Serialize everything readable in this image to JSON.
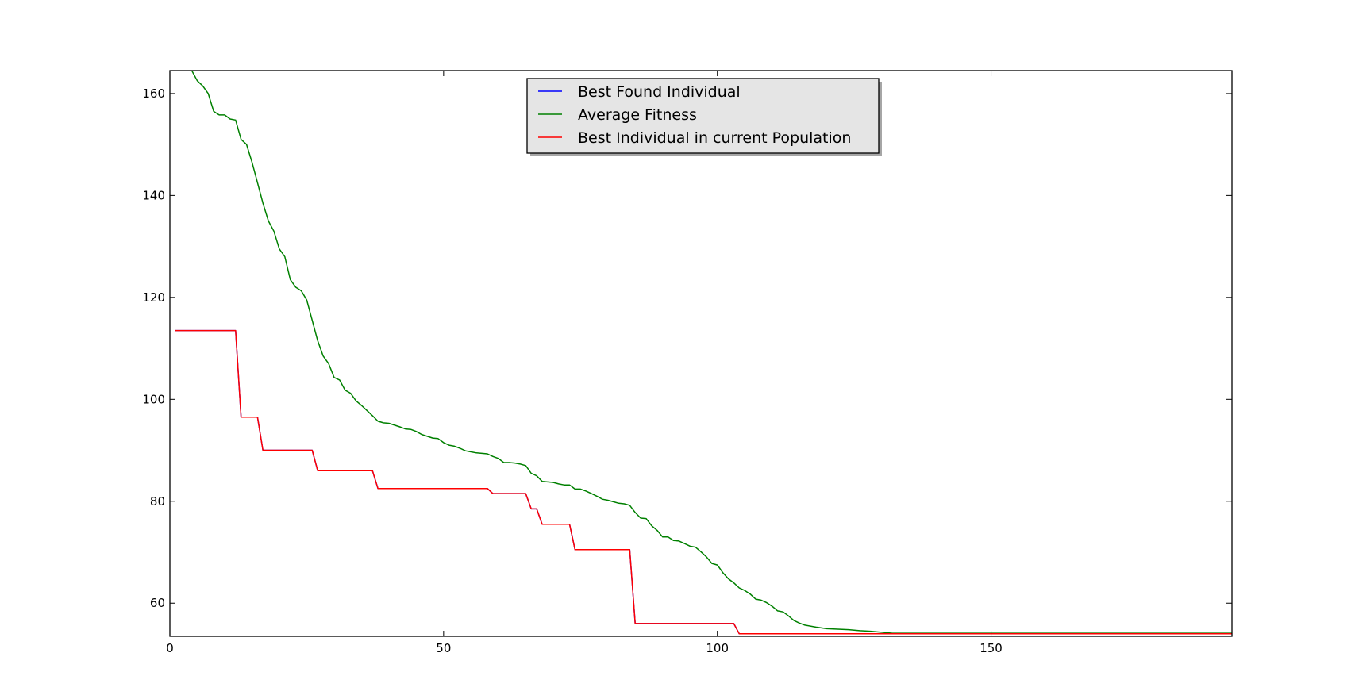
{
  "chart_data": {
    "type": "line",
    "title": "",
    "xlabel": "",
    "ylabel": "",
    "xlim": [
      0,
      194
    ],
    "ylim": [
      53.5,
      164.5
    ],
    "xticks": [
      0,
      50,
      100,
      150
    ],
    "yticks": [
      60,
      80,
      100,
      120,
      140,
      160
    ],
    "grid": false,
    "legend": {
      "placement": "top-center",
      "entries": [
        {
          "label": "Best Found Individual",
          "color": "#0000ff"
        },
        {
          "label": "Average Fitness",
          "color": "#008000"
        },
        {
          "label": "Best Individual in current Population",
          "color": "#ff0000"
        }
      ]
    },
    "series": [
      {
        "name": "Best Found Individual",
        "color": "#0000ff",
        "points": [
          [
            1,
            113.5
          ],
          [
            12,
            113.5
          ],
          [
            13,
            96.5
          ],
          [
            16,
            96.5
          ],
          [
            17,
            90
          ],
          [
            26,
            90
          ],
          [
            27,
            86
          ],
          [
            37,
            86
          ],
          [
            38,
            82.5
          ],
          [
            58,
            82.5
          ],
          [
            59,
            81.5
          ],
          [
            65,
            81.5
          ],
          [
            66,
            78.5
          ],
          [
            67,
            78.5
          ],
          [
            68,
            75.5
          ],
          [
            73,
            75.5
          ],
          [
            74,
            70.5
          ],
          [
            84,
            70.5
          ],
          [
            85,
            56
          ],
          [
            103,
            56
          ],
          [
            104,
            54
          ],
          [
            194,
            54
          ]
        ]
      },
      {
        "name": "Average Fitness",
        "color": "#008000",
        "points": [
          [
            4,
            164.5
          ],
          [
            5,
            162.5
          ],
          [
            6,
            161.5
          ],
          [
            7,
            160
          ],
          [
            8,
            156.5
          ],
          [
            9,
            155.8
          ],
          [
            10,
            155.8
          ],
          [
            11,
            155
          ],
          [
            12,
            154.8
          ],
          [
            13,
            151
          ],
          [
            14,
            150
          ],
          [
            15,
            146.5
          ],
          [
            16,
            142.5
          ],
          [
            17,
            138.5
          ],
          [
            18,
            135
          ],
          [
            19,
            133
          ],
          [
            20,
            129.5
          ],
          [
            21,
            128
          ],
          [
            22,
            123.5
          ],
          [
            23,
            122
          ],
          [
            24,
            121.3
          ],
          [
            25,
            119.5
          ],
          [
            26,
            115.5
          ],
          [
            27,
            111.5
          ],
          [
            28,
            108.5
          ],
          [
            29,
            107
          ],
          [
            30,
            104.3
          ],
          [
            31,
            103.8
          ],
          [
            32,
            101.8
          ],
          [
            33,
            101.2
          ],
          [
            34,
            99.7
          ],
          [
            35,
            98.8
          ],
          [
            36,
            97.8
          ],
          [
            37,
            96.8
          ],
          [
            38,
            95.7
          ],
          [
            39,
            95.4
          ],
          [
            40,
            95.3
          ],
          [
            42,
            94.6
          ],
          [
            43,
            94.2
          ],
          [
            44,
            94.1
          ],
          [
            45,
            93.7
          ],
          [
            46,
            93.1
          ],
          [
            48,
            92.4
          ],
          [
            49,
            92.3
          ],
          [
            50,
            91.5
          ],
          [
            51,
            91
          ],
          [
            52,
            90.8
          ],
          [
            53,
            90.4
          ],
          [
            54,
            89.9
          ],
          [
            55,
            89.7
          ],
          [
            56,
            89.5
          ],
          [
            58,
            89.3
          ],
          [
            59,
            88.8
          ],
          [
            60,
            88.4
          ],
          [
            61,
            87.6
          ],
          [
            62,
            87.6
          ],
          [
            63,
            87.5
          ],
          [
            64,
            87.3
          ],
          [
            65,
            87
          ],
          [
            66,
            85.5
          ],
          [
            67,
            85
          ],
          [
            68,
            83.9
          ],
          [
            69,
            83.8
          ],
          [
            70,
            83.7
          ],
          [
            71,
            83.4
          ],
          [
            72,
            83.2
          ],
          [
            73,
            83.2
          ],
          [
            74,
            82.4
          ],
          [
            75,
            82.4
          ],
          [
            76,
            82
          ],
          [
            77,
            81.5
          ],
          [
            78,
            81
          ],
          [
            79,
            80.4
          ],
          [
            80,
            80.2
          ],
          [
            81,
            79.9
          ],
          [
            82,
            79.6
          ],
          [
            83,
            79.5
          ],
          [
            84,
            79.2
          ],
          [
            85,
            77.8
          ],
          [
            86,
            76.7
          ],
          [
            87,
            76.6
          ],
          [
            88,
            75.2
          ],
          [
            89,
            74.3
          ],
          [
            90,
            73
          ],
          [
            91,
            73
          ],
          [
            92,
            72.3
          ],
          [
            93,
            72.2
          ],
          [
            94,
            71.7
          ],
          [
            95,
            71.2
          ],
          [
            96,
            71
          ],
          [
            97,
            70.1
          ],
          [
            98,
            69.1
          ],
          [
            99,
            67.8
          ],
          [
            100,
            67.5
          ],
          [
            101,
            66
          ],
          [
            102,
            64.8
          ],
          [
            103,
            64
          ],
          [
            104,
            63
          ],
          [
            105,
            62.5
          ],
          [
            106,
            61.8
          ],
          [
            107,
            60.8
          ],
          [
            108,
            60.6
          ],
          [
            109,
            60.1
          ],
          [
            110,
            59.4
          ],
          [
            111,
            58.5
          ],
          [
            112,
            58.3
          ],
          [
            113,
            57.5
          ],
          [
            114,
            56.6
          ],
          [
            115,
            56.1
          ],
          [
            116,
            55.7
          ],
          [
            118,
            55.3
          ],
          [
            120,
            55
          ],
          [
            122,
            54.9
          ],
          [
            124,
            54.8
          ],
          [
            126,
            54.6
          ],
          [
            128,
            54.5
          ],
          [
            130,
            54.3
          ],
          [
            132,
            54.1
          ],
          [
            194,
            54.1
          ]
        ]
      },
      {
        "name": "Best Individual in current Population",
        "color": "#ff0000",
        "points": [
          [
            1,
            113.5
          ],
          [
            12,
            113.5
          ],
          [
            13,
            96.5
          ],
          [
            16,
            96.5
          ],
          [
            17,
            90
          ],
          [
            26,
            90
          ],
          [
            27,
            86
          ],
          [
            37,
            86
          ],
          [
            38,
            82.5
          ],
          [
            58,
            82.5
          ],
          [
            59,
            81.5
          ],
          [
            65,
            81.5
          ],
          [
            66,
            78.5
          ],
          [
            67,
            78.5
          ],
          [
            68,
            75.5
          ],
          [
            73,
            75.5
          ],
          [
            74,
            70.5
          ],
          [
            84,
            70.5
          ],
          [
            85,
            56
          ],
          [
            103,
            56
          ],
          [
            104,
            54
          ],
          [
            194,
            54
          ]
        ]
      }
    ]
  }
}
